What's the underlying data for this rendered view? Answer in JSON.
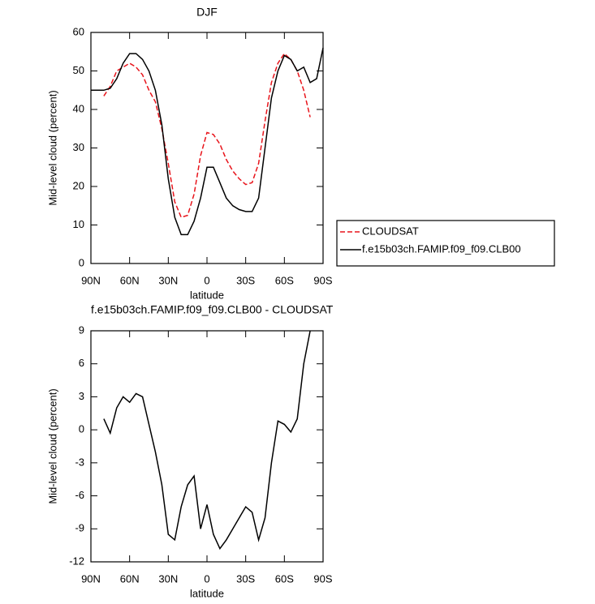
{
  "chart_data": [
    {
      "type": "line",
      "title": "DJF",
      "xlabel": "latitude",
      "ylabel": "Mid-level cloud (percent)",
      "x": [
        90,
        85,
        80,
        75,
        70,
        65,
        60,
        55,
        50,
        45,
        40,
        35,
        30,
        25,
        20,
        15,
        10,
        5,
        0,
        -5,
        -10,
        -15,
        -20,
        -25,
        -30,
        -35,
        -40,
        -45,
        -50,
        -55,
        -60,
        -65,
        -70,
        -75,
        -80,
        -85,
        -90
      ],
      "xlim": [
        90,
        -90
      ],
      "xticks": [
        {
          "value": 90,
          "label": "90N"
        },
        {
          "value": 60,
          "label": "60N"
        },
        {
          "value": 30,
          "label": "30N"
        },
        0,
        {
          "value": -30,
          "label": "30S"
        },
        {
          "value": -60,
          "label": "60S"
        },
        {
          "value": -90,
          "label": "90S"
        }
      ],
      "ylim": [
        0,
        60
      ],
      "yticks": [
        0,
        10,
        20,
        30,
        40,
        50,
        60
      ],
      "legend": "right",
      "series": [
        {
          "name": "CLOUDSAT",
          "color": "#e8141b",
          "dash": "dashed",
          "values": [
            null,
            null,
            43.5,
            46,
            50,
            51,
            52,
            51,
            49,
            45,
            42,
            35,
            26,
            16,
            12,
            12.5,
            18,
            28,
            34,
            33.5,
            31,
            27,
            24,
            22,
            20.5,
            21,
            26,
            37,
            47,
            52,
            54.5,
            53,
            50,
            45,
            38,
            null,
            null
          ]
        },
        {
          "name": "f.e15b03ch.FAMIP.f09_f09.CLB00",
          "color": "#000000",
          "dash": "solid",
          "values": [
            45,
            45,
            45,
            45.5,
            48,
            52,
            54.5,
            54.5,
            53,
            50,
            45,
            36,
            22,
            12,
            7.5,
            7.5,
            11,
            17,
            25,
            25,
            21,
            17,
            15,
            14,
            13.5,
            13.5,
            17,
            30,
            43,
            50,
            54,
            53,
            50,
            51,
            47,
            48,
            56
          ]
        }
      ]
    },
    {
      "type": "line",
      "title": "f.e15b03ch.FAMIP.f09_f09.CLB00 - CLOUDSAT",
      "xlabel": "latitude",
      "ylabel": "Mid-level cloud (percent)",
      "x": [
        80,
        75,
        70,
        65,
        60,
        55,
        50,
        45,
        40,
        35,
        30,
        25,
        20,
        15,
        10,
        5,
        0,
        -5,
        -10,
        -15,
        -20,
        -25,
        -30,
        -35,
        -40,
        -45,
        -50,
        -55,
        -60,
        -65,
        -70,
        -75,
        -80
      ],
      "xlim": [
        90,
        -90
      ],
      "xticks": [
        {
          "value": 90,
          "label": "90N"
        },
        {
          "value": 60,
          "label": "60N"
        },
        {
          "value": 30,
          "label": "30N"
        },
        0,
        {
          "value": -30,
          "label": "30S"
        },
        {
          "value": -60,
          "label": "60S"
        },
        {
          "value": -90,
          "label": "90S"
        }
      ],
      "ylim": [
        -12,
        9
      ],
      "yticks": [
        -12,
        -9,
        -6,
        -3,
        0,
        3,
        6,
        9
      ],
      "series": [
        {
          "color": "#000000",
          "dash": "solid",
          "values": [
            1,
            -0.3,
            2,
            3,
            2.5,
            3.3,
            3,
            0.5,
            -2,
            -5,
            -9.5,
            -10,
            -7,
            -5,
            -4.2,
            -9,
            -6.8,
            -9.5,
            -10.8,
            -10,
            -9,
            -8,
            -7,
            -7.5,
            -10,
            -8,
            -3,
            0.8,
            0.5,
            -0.2,
            1,
            6,
            9
          ]
        }
      ]
    }
  ]
}
